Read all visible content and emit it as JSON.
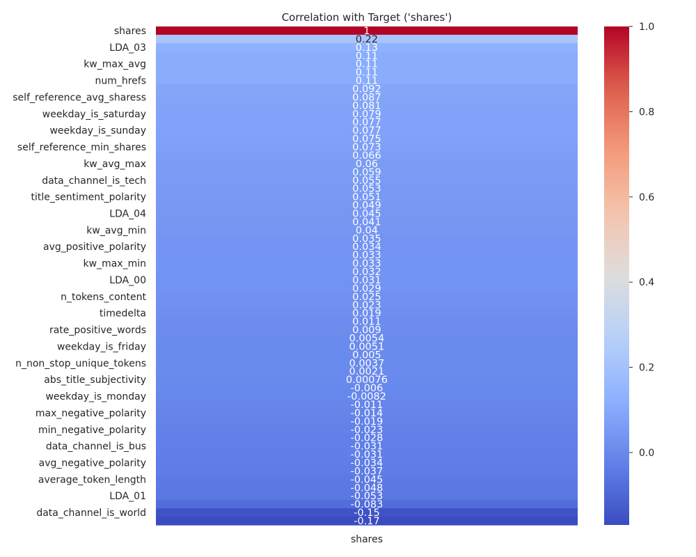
{
  "chart_data": {
    "type": "heatmap",
    "title": "Correlation with Target ('shares')",
    "column_label": "shares",
    "colormap": "coolwarm",
    "rows": [
      {
        "label": "shares",
        "value": 1,
        "text": "1"
      },
      {
        "label": "",
        "value": 0.22,
        "text": "0.22"
      },
      {
        "label": "LDA_03",
        "value": 0.13,
        "text": "0.13"
      },
      {
        "label": "",
        "value": 0.11,
        "text": "0.11"
      },
      {
        "label": "kw_max_avg",
        "value": 0.11,
        "text": "0.11"
      },
      {
        "label": "",
        "value": 0.11,
        "text": "0.11"
      },
      {
        "label": "num_hrefs",
        "value": 0.11,
        "text": "0.11"
      },
      {
        "label": "",
        "value": 0.092,
        "text": "0.092"
      },
      {
        "label": "self_reference_avg_sharess",
        "value": 0.087,
        "text": "0.087"
      },
      {
        "label": "",
        "value": 0.081,
        "text": "0.081"
      },
      {
        "label": "weekday_is_saturday",
        "value": 0.079,
        "text": "0.079"
      },
      {
        "label": "",
        "value": 0.077,
        "text": "0.077"
      },
      {
        "label": "weekday_is_sunday",
        "value": 0.077,
        "text": "0.077"
      },
      {
        "label": "",
        "value": 0.075,
        "text": "0.075"
      },
      {
        "label": "self_reference_min_shares",
        "value": 0.073,
        "text": "0.073"
      },
      {
        "label": "",
        "value": 0.066,
        "text": "0.066"
      },
      {
        "label": "kw_avg_max",
        "value": 0.06,
        "text": "0.06"
      },
      {
        "label": "",
        "value": 0.059,
        "text": "0.059"
      },
      {
        "label": "data_channel_is_tech",
        "value": 0.055,
        "text": "0.055"
      },
      {
        "label": "",
        "value": 0.053,
        "text": "0.053"
      },
      {
        "label": "title_sentiment_polarity",
        "value": 0.051,
        "text": "0.051"
      },
      {
        "label": "",
        "value": 0.049,
        "text": "0.049"
      },
      {
        "label": "LDA_04",
        "value": 0.045,
        "text": "0.045"
      },
      {
        "label": "",
        "value": 0.041,
        "text": "0.041"
      },
      {
        "label": "kw_avg_min",
        "value": 0.04,
        "text": "0.04"
      },
      {
        "label": "",
        "value": 0.035,
        "text": "0.035"
      },
      {
        "label": "avg_positive_polarity",
        "value": 0.034,
        "text": "0.034"
      },
      {
        "label": "",
        "value": 0.033,
        "text": "0.033"
      },
      {
        "label": "kw_max_min",
        "value": 0.033,
        "text": "0.033"
      },
      {
        "label": "",
        "value": 0.032,
        "text": "0.032"
      },
      {
        "label": "LDA_00",
        "value": 0.031,
        "text": "0.031"
      },
      {
        "label": "",
        "value": 0.029,
        "text": "0.029"
      },
      {
        "label": "n_tokens_content",
        "value": 0.025,
        "text": "0.025"
      },
      {
        "label": "",
        "value": 0.023,
        "text": "0.023"
      },
      {
        "label": "timedelta",
        "value": 0.019,
        "text": "0.019"
      },
      {
        "label": "",
        "value": 0.011,
        "text": "0.011"
      },
      {
        "label": "rate_positive_words",
        "value": 0.009,
        "text": "0.009"
      },
      {
        "label": "",
        "value": 0.0054,
        "text": "0.0054"
      },
      {
        "label": "weekday_is_friday",
        "value": 0.0051,
        "text": "0.0051"
      },
      {
        "label": "",
        "value": 0.005,
        "text": "0.005"
      },
      {
        "label": "n_non_stop_unique_tokens",
        "value": 0.0037,
        "text": "0.0037"
      },
      {
        "label": "",
        "value": 0.0021,
        "text": "0.0021"
      },
      {
        "label": "abs_title_subjectivity",
        "value": 0.00076,
        "text": "0.00076"
      },
      {
        "label": "",
        "value": -0.006,
        "text": "-0.006"
      },
      {
        "label": "weekday_is_monday",
        "value": -0.0082,
        "text": "-0.0082"
      },
      {
        "label": "",
        "value": -0.011,
        "text": "-0.011"
      },
      {
        "label": "max_negative_polarity",
        "value": -0.014,
        "text": "-0.014"
      },
      {
        "label": "",
        "value": -0.019,
        "text": "-0.019"
      },
      {
        "label": "min_negative_polarity",
        "value": -0.023,
        "text": "-0.023"
      },
      {
        "label": "",
        "value": -0.028,
        "text": "-0.028"
      },
      {
        "label": "data_channel_is_bus",
        "value": -0.031,
        "text": "-0.031"
      },
      {
        "label": "",
        "value": -0.031,
        "text": "-0.031"
      },
      {
        "label": "avg_negative_polarity",
        "value": -0.034,
        "text": "-0.034"
      },
      {
        "label": "",
        "value": -0.037,
        "text": "-0.037"
      },
      {
        "label": "average_token_length",
        "value": -0.045,
        "text": "-0.045"
      },
      {
        "label": "",
        "value": -0.048,
        "text": "-0.048"
      },
      {
        "label": "LDA_01",
        "value": -0.053,
        "text": "-0.053"
      },
      {
        "label": "",
        "value": -0.083,
        "text": "-0.083"
      },
      {
        "label": "data_channel_is_world",
        "value": -0.15,
        "text": "-0.15"
      },
      {
        "label": "",
        "value": -0.17,
        "text": "-0.17"
      }
    ],
    "colorbar": {
      "vmin": -0.17,
      "vmax": 1.0,
      "ticks": [
        "0.0",
        "0.2",
        "0.4",
        "0.6",
        "0.8",
        "1.0"
      ]
    }
  }
}
